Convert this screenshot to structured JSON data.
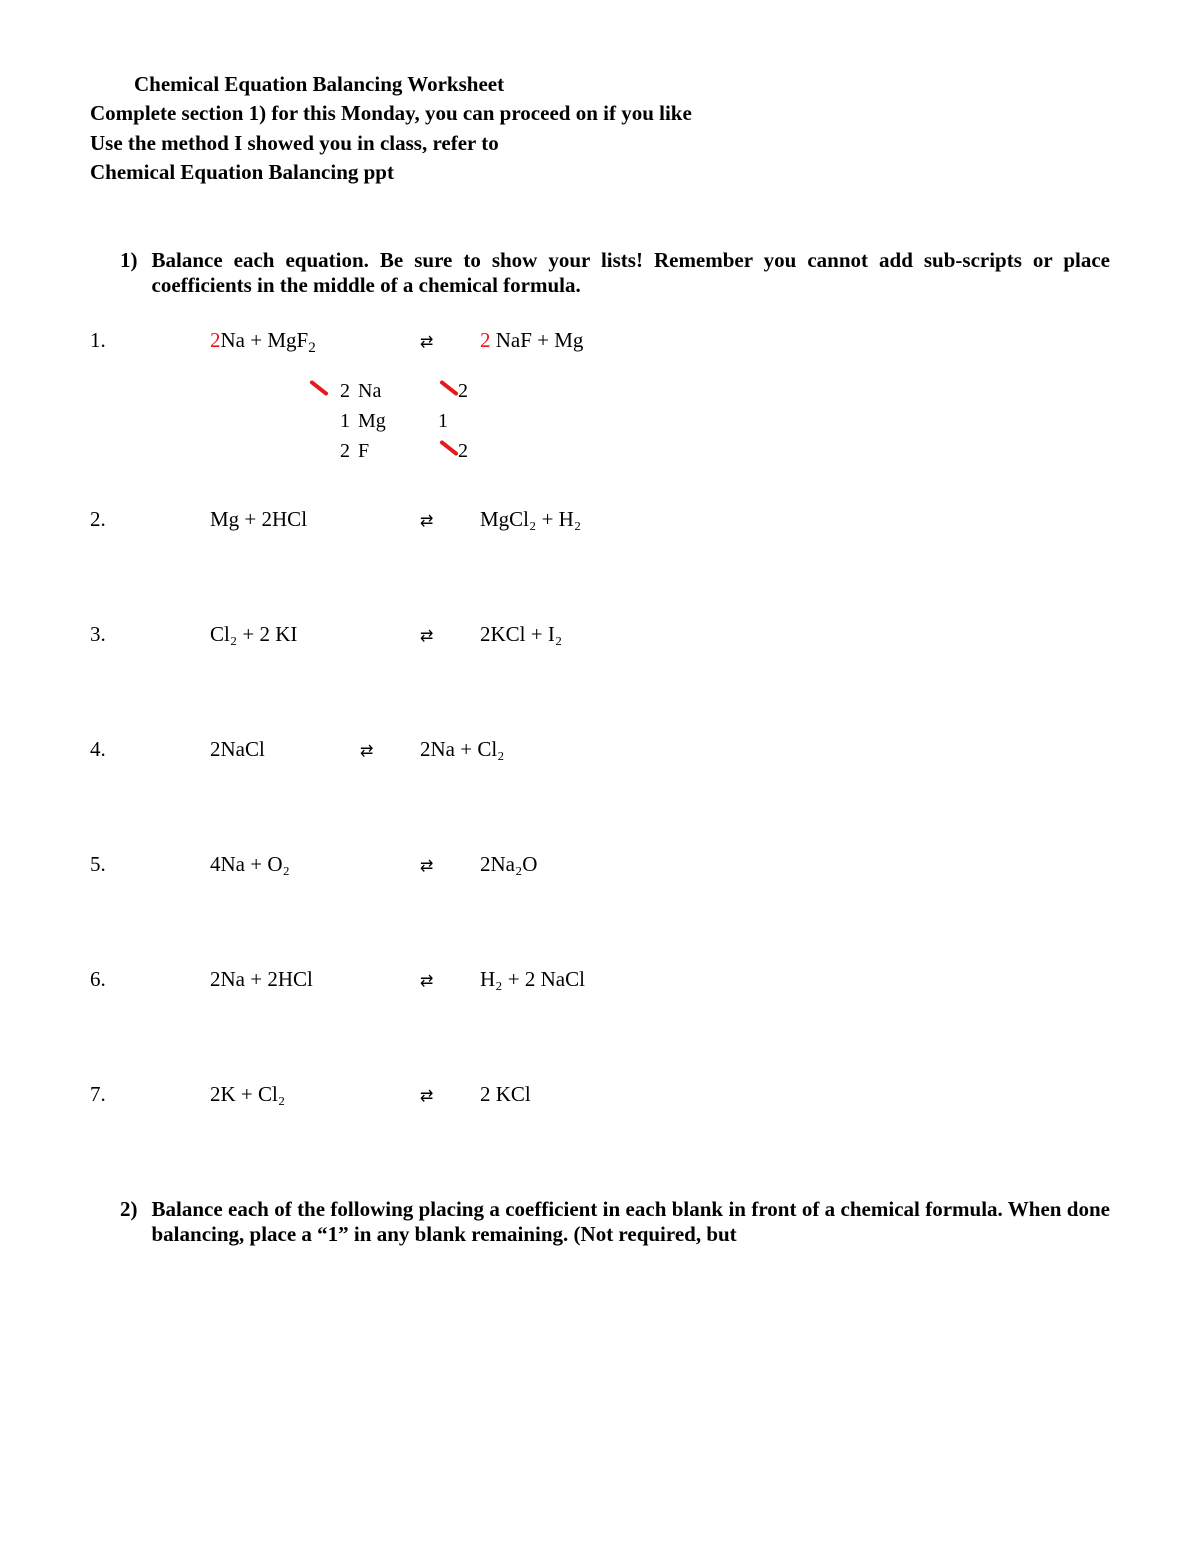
{
  "colors": {
    "text": "#000000",
    "background": "#ffffff",
    "red": "#e41a1c"
  },
  "header": {
    "title": "Chemical Equation Balancing Worksheet",
    "line1": "Complete section 1) for this Monday, you can proceed on if you like",
    "line2": "Use the method I showed you in class, refer to",
    "line3": " Chemical Equation Balancing ppt"
  },
  "section1": {
    "number": "1)",
    "text": "Balance each equation.  Be sure to show your lists!  Remember you cannot add sub-scripts or place coefficients in the middle of a chemical formula."
  },
  "arrow_glyph": "⇆",
  "problems": [
    {
      "num": "1.",
      "left_pre_coef": "2",
      "left_rest": "Na  +    MgF",
      "left_sub": "2",
      "right_pre_coef": "2",
      "right_rest": " NaF +    Mg",
      "tally": [
        {
          "l_old": "",
          "l_new": "2",
          "elem": "Na",
          "r_old": "",
          "r_new": "2",
          "l_strike": true,
          "r_strike": true
        },
        {
          "l_old": "",
          "l_new": "1",
          "elem": "Mg",
          "r_old": "1",
          "r_new": "",
          "l_strike": false,
          "r_strike": false
        },
        {
          "l_old": "",
          "l_new": "2",
          "elem": "F",
          "r_old": "",
          "r_new": "2",
          "l_strike": false,
          "r_strike": true
        }
      ]
    },
    {
      "num": "2.",
      "left": "Mg  +    2HCl",
      "right": "MgCl₂  +    H₂"
    },
    {
      "num": "3.",
      "left": "Cl₂  +   2 KI",
      "right": "2KCl  +    I₂"
    },
    {
      "num": "4.",
      "left": "2NaCl",
      "arrow_shift": true,
      "right": "2Na  +    Cl₂"
    },
    {
      "num": "5.",
      "left": "4Na  +    O₂",
      "right": "2Na₂O"
    },
    {
      "num": "6.",
      "left": "2Na  +    2HCl",
      "right": "H₂    +   2 NaCl"
    },
    {
      "num": "7.",
      "left": "2K  +    Cl₂",
      "right": "2 KCl"
    }
  ],
  "section2": {
    "number": "2)",
    "text": "Balance each of the following placing a coefficient in each blank in front of a chemical formula. When done balancing, place a “1” in any blank remaining. (Not required, but"
  }
}
